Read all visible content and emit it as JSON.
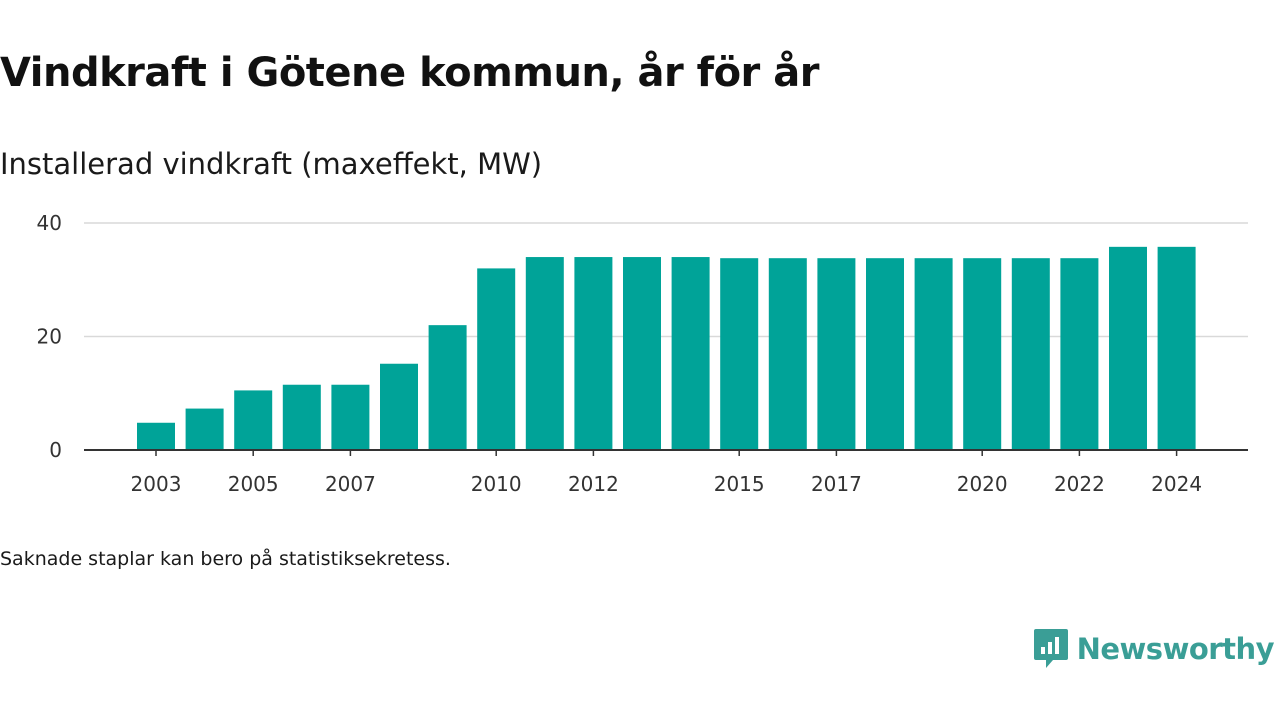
{
  "title": "Vindkraft i Götene kommun, år för år",
  "subtitle": "Installerad vindkraft (maxeffekt, MW)",
  "note": "Saknade staplar kan bero på statistiksekretess.",
  "brand": {
    "name": "Newsworthy",
    "color": "#3a9e96",
    "icon": "newsworthy-logo-icon"
  },
  "chart_data": {
    "type": "bar",
    "color": "#00a398",
    "x": [
      2003,
      2004,
      2005,
      2006,
      2007,
      2008,
      2009,
      2010,
      2011,
      2012,
      2013,
      2014,
      2015,
      2016,
      2017,
      2018,
      2019,
      2020,
      2021,
      2022,
      2023,
      2024
    ],
    "values": [
      4.8,
      7.3,
      10.5,
      11.5,
      11.5,
      15.2,
      22,
      32,
      34,
      34,
      34,
      34,
      33.8,
      33.8,
      33.8,
      33.8,
      33.8,
      33.8,
      33.8,
      33.8,
      35.8,
      35.8
    ],
    "x_tick_labels": [
      "2003",
      "2005",
      "2007",
      "2010",
      "2012",
      "2015",
      "2017",
      "2020",
      "2022",
      "2024"
    ],
    "y_ticks": [
      0,
      20,
      40
    ],
    "ylim": [
      0,
      40
    ],
    "grid": true
  }
}
